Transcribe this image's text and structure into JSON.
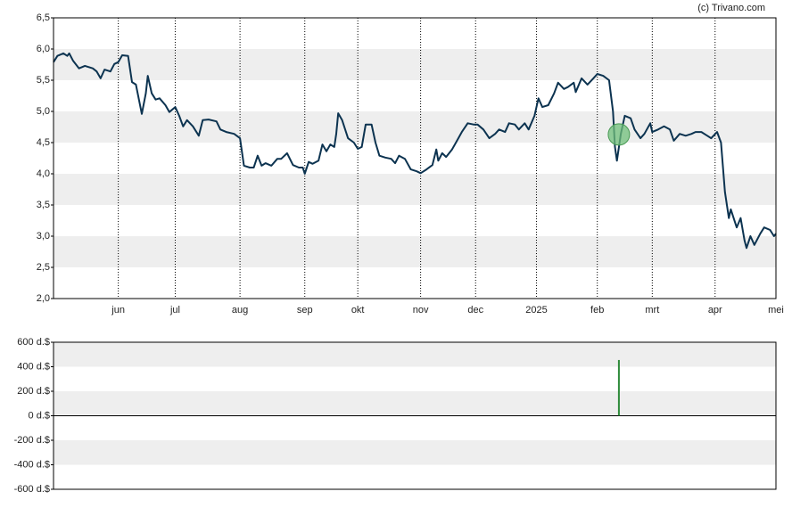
{
  "credit": "(c) Trivano.com",
  "chart_data": [
    {
      "type": "line",
      "color": "#0c3350",
      "grid": true,
      "bands": true,
      "xlim": [
        0,
        368
      ],
      "xticks": [
        {
          "value": 33,
          "label": "jun"
        },
        {
          "value": 62,
          "label": "jul"
        },
        {
          "value": 95,
          "label": "aug"
        },
        {
          "value": 128,
          "label": "sep"
        },
        {
          "value": 155,
          "label": "okt"
        },
        {
          "value": 187,
          "label": "nov"
        },
        {
          "value": 215,
          "label": "dec"
        },
        {
          "value": 246,
          "label": "2025"
        },
        {
          "value": 277,
          "label": "feb"
        },
        {
          "value": 305,
          "label": "mrt"
        },
        {
          "value": 337,
          "label": "apr"
        },
        {
          "value": 368,
          "label": "mei"
        }
      ],
      "ylim": [
        2.0,
        6.5
      ],
      "yticks": [
        {
          "value": 2.0,
          "label": "2,0"
        },
        {
          "value": 2.5,
          "label": "2,5"
        },
        {
          "value": 3.0,
          "label": "3,0"
        },
        {
          "value": 3.5,
          "label": "3,5"
        },
        {
          "value": 4.0,
          "label": "4,0"
        },
        {
          "value": 4.5,
          "label": "4,5"
        },
        {
          "value": 5.0,
          "label": "5,0"
        },
        {
          "value": 5.5,
          "label": "5,5"
        },
        {
          "value": 6.0,
          "label": "6,0"
        },
        {
          "value": 6.5,
          "label": "6,5"
        }
      ],
      "x": [
        0,
        2,
        5,
        7,
        8,
        10,
        13,
        16,
        20,
        22,
        24,
        26,
        29,
        31,
        33,
        35,
        38,
        40,
        42,
        45,
        47,
        48,
        50,
        52,
        54,
        57,
        59,
        62,
        64,
        66,
        68,
        71,
        74,
        76,
        79,
        83,
        85,
        88,
        92,
        95,
        97,
        100,
        102,
        104,
        106,
        108,
        111,
        114,
        116,
        119,
        122,
        125,
        127,
        128,
        130,
        132,
        135,
        137,
        139,
        141,
        143,
        144,
        145,
        147,
        150,
        153,
        155,
        157,
        159,
        162,
        164,
        166,
        169,
        172,
        174,
        176,
        179,
        182,
        185,
        187,
        190,
        193,
        195,
        196,
        198,
        200,
        203,
        205,
        208,
        211,
        214,
        216,
        219,
        222,
        225,
        227,
        230,
        232,
        235,
        237,
        240,
        242,
        245,
        247,
        249,
        252,
        255,
        257,
        260,
        262,
        265,
        266,
        269,
        272,
        275,
        277,
        280,
        283,
        285,
        286,
        287,
        289,
        291,
        294,
        296,
        299,
        301,
        304,
        305,
        308,
        311,
        314,
        316,
        319,
        322,
        325,
        327,
        330,
        333,
        335,
        338,
        340,
        342,
        344,
        345,
        348,
        350,
        352,
        353,
        355,
        357,
        360,
        362,
        365,
        367,
        368
      ],
      "values": [
        5.79,
        5.89,
        5.93,
        5.89,
        5.93,
        5.81,
        5.69,
        5.73,
        5.69,
        5.64,
        5.53,
        5.67,
        5.64,
        5.76,
        5.79,
        5.9,
        5.89,
        5.47,
        5.43,
        4.96,
        5.29,
        5.57,
        5.29,
        5.19,
        5.21,
        5.1,
        4.99,
        5.07,
        4.93,
        4.76,
        4.86,
        4.76,
        4.61,
        4.86,
        4.87,
        4.84,
        4.71,
        4.67,
        4.64,
        4.57,
        4.13,
        4.1,
        4.1,
        4.29,
        4.13,
        4.17,
        4.13,
        4.24,
        4.24,
        4.33,
        4.14,
        4.1,
        4.1,
        4.0,
        4.19,
        4.16,
        4.21,
        4.47,
        4.36,
        4.47,
        4.43,
        4.64,
        4.97,
        4.86,
        4.57,
        4.5,
        4.4,
        4.43,
        4.79,
        4.79,
        4.5,
        4.29,
        4.26,
        4.24,
        4.17,
        4.29,
        4.24,
        4.07,
        4.04,
        4.01,
        4.07,
        4.14,
        4.39,
        4.21,
        4.33,
        4.27,
        4.39,
        4.5,
        4.67,
        4.81,
        4.79,
        4.79,
        4.71,
        4.57,
        4.64,
        4.71,
        4.67,
        4.81,
        4.79,
        4.71,
        4.81,
        4.71,
        4.93,
        5.21,
        5.07,
        5.1,
        5.29,
        5.46,
        5.36,
        5.39,
        5.46,
        5.31,
        5.53,
        5.43,
        5.53,
        5.6,
        5.57,
        5.5,
        5.0,
        4.43,
        4.21,
        4.64,
        4.93,
        4.89,
        4.71,
        4.57,
        4.64,
        4.81,
        4.67,
        4.71,
        4.76,
        4.71,
        4.53,
        4.64,
        4.61,
        4.64,
        4.67,
        4.67,
        4.61,
        4.57,
        4.67,
        4.5,
        3.71,
        3.29,
        3.43,
        3.14,
        3.29,
        2.93,
        2.81,
        3.0,
        2.86,
        3.04,
        3.14,
        3.1,
        3.0,
        3.04
      ],
      "highlight": {
        "x": 288,
        "y": 4.63,
        "color": "#6fbf7a"
      }
    },
    {
      "type": "bar",
      "color": "#2e8b3a",
      "bands": true,
      "xlim": [
        0,
        368
      ],
      "ylim": [
        -600,
        600
      ],
      "yticks": [
        {
          "value": -600,
          "label": "-600 d.$"
        },
        {
          "value": -400,
          "label": "-400 d.$"
        },
        {
          "value": -200,
          "label": "-200 d.$"
        },
        {
          "value": 0,
          "label": "0 d.$"
        },
        {
          "value": 200,
          "label": "200 d.$"
        },
        {
          "value": 400,
          "label": "400 d.$"
        },
        {
          "value": 600,
          "label": "600 d.$"
        }
      ],
      "x": [
        288
      ],
      "values": [
        455
      ]
    }
  ]
}
